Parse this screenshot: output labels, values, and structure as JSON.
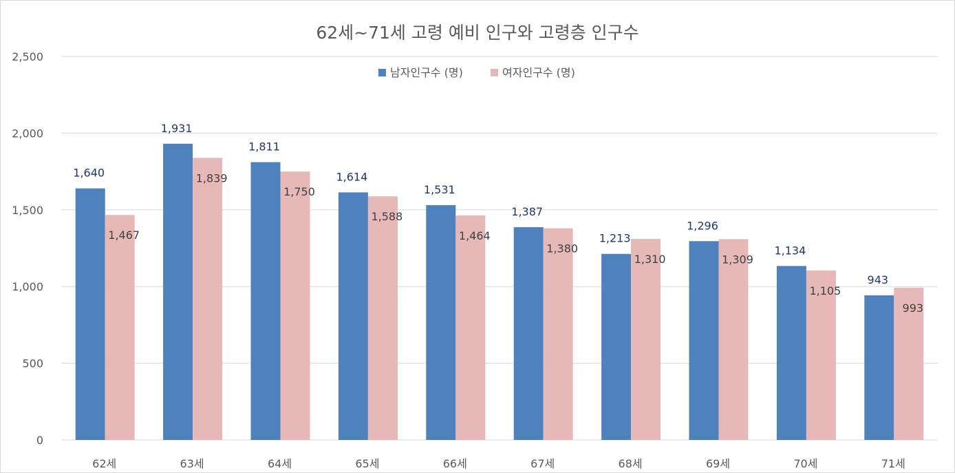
{
  "chart_data": {
    "type": "bar",
    "title": "62세~71세 고령 예비 인구와 고령층 인구수",
    "xlabel": "",
    "ylabel": "",
    "categories": [
      "62세",
      "63세",
      "64세",
      "65세",
      "66세",
      "67세",
      "68세",
      "69세",
      "70세",
      "71세"
    ],
    "series": [
      {
        "name": "남자인구수 (명)",
        "color": "#4f81bd",
        "values": [
          1640,
          1931,
          1811,
          1614,
          1531,
          1387,
          1213,
          1296,
          1134,
          943
        ],
        "labels": [
          "1,640",
          "1,931",
          "1,811",
          "1,614",
          "1,531",
          "1,387",
          "1,213",
          "1,296",
          "1,134",
          "943"
        ]
      },
      {
        "name": "여자인구수 (명)",
        "color": "#e6b9b8",
        "values": [
          1467,
          1839,
          1750,
          1588,
          1464,
          1380,
          1310,
          1309,
          1105,
          993
        ],
        "labels": [
          "1,467",
          "1,839",
          "1,750",
          "1,588",
          "1,464",
          "1,380",
          "1,310",
          "1,309",
          "1,105",
          "993"
        ]
      }
    ],
    "ylim": [
      0,
      2500
    ],
    "yticks": [
      0,
      500,
      1000,
      1500,
      2000,
      2500
    ],
    "ytick_labels": [
      "0",
      "500",
      "1,000",
      "1,500",
      "2,000",
      "2,500"
    ],
    "grid": true,
    "gridline_color": "#d9d9d9",
    "legend_position": "top-center"
  }
}
